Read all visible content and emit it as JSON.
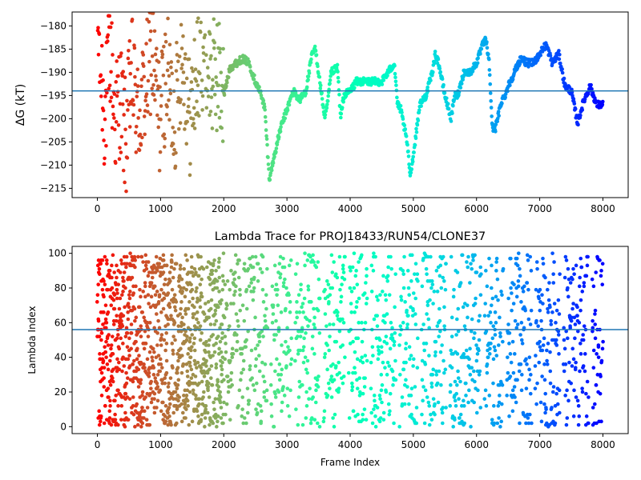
{
  "chart_data": [
    {
      "type": "scatter",
      "title": "",
      "xlabel": "",
      "ylabel": "ΔG (kT)",
      "xlim": [
        -400,
        8400
      ],
      "ylim": [
        -217,
        -177
      ],
      "xticks": [
        0,
        1000,
        2000,
        3000,
        4000,
        5000,
        6000,
        7000,
        8000
      ],
      "yticks": [
        -215,
        -210,
        -205,
        -200,
        -195,
        -190,
        -185,
        -180
      ],
      "xtick_labels": [
        "0",
        "1000",
        "2000",
        "3000",
        "4000",
        "5000",
        "6000",
        "7000",
        "8000"
      ],
      "ytick_labels": [
        "−215",
        "−210",
        "−205",
        "−200",
        "−195",
        "−190",
        "−185",
        "−180"
      ],
      "hline": -194,
      "hline_color": "#1f77b4",
      "colormap": "rainbow (red at frame 0 → violet at frame 8000)",
      "grid": false,
      "trace_knots": {
        "x": [
          0,
          60,
          120,
          200,
          280,
          360,
          450,
          540,
          640,
          740,
          860,
          980,
          1100,
          1220,
          1340,
          1460,
          1580,
          1700,
          1800,
          1900,
          2000,
          2100,
          2200,
          2300,
          2400,
          2500,
          2600,
          2650,
          2720,
          2800,
          2900,
          3000,
          3100,
          3200,
          3300,
          3400,
          3450,
          3500,
          3600,
          3650,
          3700,
          3800,
          3850,
          3900,
          4000,
          4100,
          4200,
          4300,
          4400,
          4500,
          4600,
          4700,
          4750,
          4800,
          4900,
          4950,
          5000,
          5100,
          5200,
          5300,
          5350,
          5400,
          5500,
          5600,
          5650,
          5700,
          5800,
          5900,
          6000,
          6100,
          6150,
          6200,
          6250,
          6300,
          6400,
          6450,
          6500,
          6600,
          6700,
          6800,
          6900,
          7000,
          7100,
          7200,
          7300,
          7400,
          7500,
          7600,
          7700,
          7800,
          7900,
          8000
        ],
        "y": [
          -180,
          -190,
          -200,
          -185,
          -200,
          -195,
          -205,
          -190,
          -200,
          -195,
          -185,
          -200,
          -190,
          -200,
          -185,
          -200,
          -190,
          -183,
          -192,
          -190,
          -195,
          -189,
          -188,
          -187,
          -188,
          -192,
          -195,
          -198,
          -213,
          -208,
          -202,
          -198,
          -194,
          -196,
          -194,
          -186,
          -185,
          -190,
          -200,
          -196,
          -190,
          -189,
          -200,
          -195,
          -194,
          -192,
          -192,
          -192,
          -192,
          -192,
          -190,
          -188,
          -197,
          -198,
          -205,
          -212,
          -208,
          -197,
          -195,
          -190,
          -186,
          -188,
          -195,
          -200,
          -195,
          -195,
          -190,
          -190,
          -188,
          -184,
          -183,
          -188,
          -202,
          -202,
          -196,
          -195,
          -193,
          -190,
          -187,
          -188,
          -188,
          -186,
          -184,
          -188,
          -186,
          -193,
          -194,
          -201,
          -196,
          -193,
          -197,
          -197
        ]
      }
    },
    {
      "type": "scatter",
      "title": "Lambda Trace for PROJ18433/RUN54/CLONE37",
      "xlabel": "Frame Index",
      "ylabel": "Lambda Index",
      "xlim": [
        -400,
        8400
      ],
      "ylim": [
        -4,
        104
      ],
      "xticks": [
        0,
        1000,
        2000,
        3000,
        4000,
        5000,
        6000,
        7000,
        8000
      ],
      "yticks": [
        0,
        20,
        40,
        60,
        80,
        100
      ],
      "xtick_labels": [
        "0",
        "1000",
        "2000",
        "3000",
        "4000",
        "5000",
        "6000",
        "7000",
        "8000"
      ],
      "ytick_labels": [
        "0",
        "20",
        "40",
        "60",
        "80",
        "100"
      ],
      "hline": 56,
      "hline_color": "#1f77b4",
      "colormap": "rainbow (red at frame 0 → violet at frame 8000)",
      "grid": false,
      "lambda_range": [
        0,
        100
      ],
      "frame_range": [
        0,
        8000
      ],
      "gap_centers": [
        2720,
        3100,
        3550,
        3950,
        4300,
        4750,
        5100,
        5550,
        6100,
        6450,
        6900,
        7350,
        7800
      ]
    }
  ]
}
